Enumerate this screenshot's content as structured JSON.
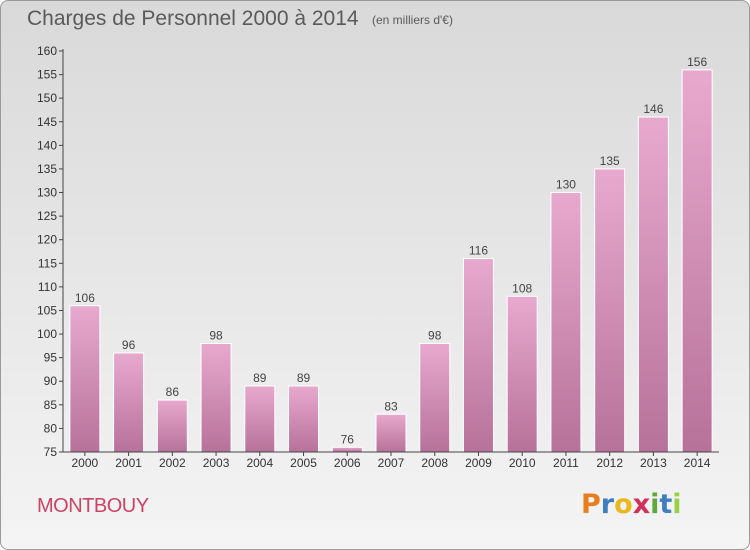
{
  "header": {
    "title": "Charges de Personnel 2000 à 2014",
    "subtitle": "(en milliers d'€)"
  },
  "footer": {
    "commune": "MONTBOUY",
    "logo": {
      "letters": [
        "P",
        "r",
        "o",
        "x",
        "i",
        "t",
        "i"
      ],
      "colors": [
        "#e87d1e",
        "#3f7fc1",
        "#e8b81e",
        "#d22f5a",
        "#5fa83c",
        "#3f7fc1",
        "#9ad045"
      ]
    }
  },
  "colors": {
    "bar_top": "#e8a9cf",
    "bar_bottom": "#b7729a",
    "axis": "#444444"
  },
  "chart_data": {
    "type": "bar",
    "title": "Charges de Personnel 2000 à 2014",
    "subtitle": "(en milliers d'€)",
    "categories": [
      "2000",
      "2001",
      "2002",
      "2003",
      "2004",
      "2005",
      "2006",
      "2007",
      "2008",
      "2009",
      "2010",
      "2011",
      "2012",
      "2013",
      "2014"
    ],
    "values": [
      106,
      96,
      86,
      98,
      89,
      89,
      76,
      83,
      98,
      116,
      108,
      130,
      135,
      146,
      156
    ],
    "ylim": [
      75,
      160
    ],
    "yticks": [
      75,
      80,
      85,
      90,
      95,
      100,
      105,
      110,
      115,
      120,
      125,
      130,
      135,
      140,
      145,
      150,
      155,
      160
    ],
    "grid": false,
    "xlabel": "",
    "ylabel": ""
  }
}
